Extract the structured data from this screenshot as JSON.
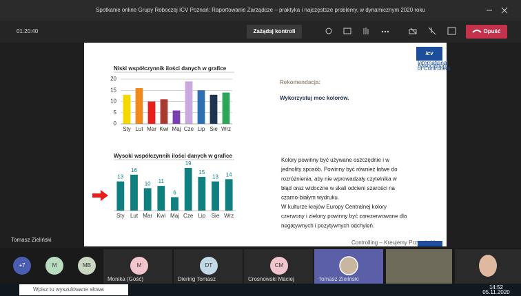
{
  "window": {
    "title": "Spotkanie online Grupy Roboczej ICV Poznań: Raportowanie Zarządcze – praktyka i najczęstsze problemy, w dynamicznym 2020 roku"
  },
  "toolbar": {
    "timer": "01:20:40",
    "control_button": "Zażądaj kontroli",
    "leave_button": "Opuść"
  },
  "slide": {
    "heading": "Rekomendacja:",
    "subheading": "Wykorzystuj moc kolorów.",
    "logo": {
      "mark": "icv",
      "text": [
        "International",
        "Association",
        "of Controllers"
      ]
    },
    "paragraph": [
      "Kolory powinny być używane oszczędnie i w",
      "jednolity sposób. Powinny być również łatwe do",
      "rozróżnienia, aby nie wprowadzały czytelnika w",
      "błąd oraz widoczne w skali odcieni szarości na",
      "czarno-białym wydruku.",
      "W kulturze krajów Europy Centralnej kolory",
      "czerwony i zielony powinny być zarezerwowane dla",
      "negatywnych i pozytywnych odchyleń."
    ],
    "footer": "Controlling – Kreujemy Przyszłość"
  },
  "presenter_label": "Tomasz Zieliński",
  "participants": [
    {
      "initials": "+7",
      "color": "#4a5db0"
    },
    {
      "initials": "M",
      "color": "#b9dcc1"
    },
    {
      "initials": "MB",
      "color": "#c9d6c0"
    },
    {
      "initials": "M",
      "name": "Monika (Gość)",
      "color": "#f2c4cc"
    },
    {
      "initials": "DT",
      "name": "Diering Tomasz",
      "color": "#c4d9e6"
    },
    {
      "initials": "CM",
      "name": "Crosnowski Maciej",
      "color": "#f2c4cc"
    },
    {
      "name": "Tomasz Zieliński"
    }
  ],
  "taskbar": {
    "search": "Wpisz tu wyszukiwane słowa",
    "time": "14:52",
    "date": "05.11.2020"
  },
  "chart_data": [
    {
      "type": "bar",
      "title": "Niski współczynnik ilości danych w grafice",
      "categories": [
        "Sty",
        "Lut",
        "Mar",
        "Kwi",
        "Maj",
        "Cze",
        "Lip",
        "Sie",
        "Wrz"
      ],
      "values": [
        13,
        16,
        10,
        11,
        6,
        19,
        15,
        13,
        14
      ],
      "colors": [
        "#f5d800",
        "#f08a1c",
        "#e8201c",
        "#a83a32",
        "#7a3fb0",
        "#c9a9de",
        "#2e6fb4",
        "#1e3550",
        "#2ea65a"
      ],
      "ylim": [
        0,
        20
      ],
      "yticks": [
        0,
        5,
        10,
        15,
        20
      ],
      "grid": true
    },
    {
      "type": "bar",
      "title": "Wysoki współczynnik ilości danych w grafice",
      "categories": [
        "Sty",
        "Lut",
        "Mar",
        "Kwi",
        "Maj",
        "Cze",
        "Lip",
        "Sie",
        "Wrz"
      ],
      "values": [
        13,
        16,
        10,
        11,
        6,
        19,
        15,
        13,
        14
      ],
      "color": "#0f7f7f",
      "data_labels": true
    }
  ]
}
